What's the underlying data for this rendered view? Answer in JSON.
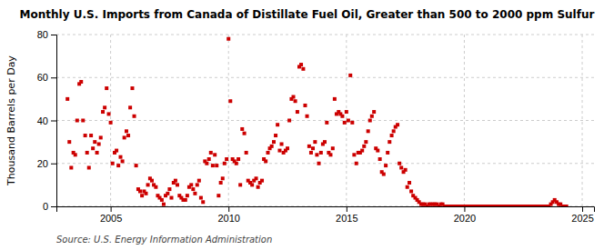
{
  "chart_data": {
    "type": "scatter",
    "title": "Monthly U.S. Imports from Canada of Distillate Fuel Oil, Greater than 500 to 2000 ppm Sulfur",
    "ylabel": "Thousand Barrels per Day",
    "source": "Source: U.S. Energy Information Administration",
    "color": "#cc0000",
    "marker": "square",
    "grid": true,
    "xlim": [
      2002.7,
      2025.5
    ],
    "ylim": [
      0,
      80
    ],
    "xticks": [
      2005,
      2010,
      2015,
      2020,
      2025
    ],
    "yticks": [
      0,
      20,
      40,
      60,
      80
    ],
    "x": [
      2003.17,
      2003.25,
      2003.33,
      2003.42,
      2003.5,
      2003.58,
      2003.67,
      2003.75,
      2003.83,
      2003.92,
      2004.0,
      2004.08,
      2004.17,
      2004.25,
      2004.33,
      2004.42,
      2004.5,
      2004.58,
      2004.67,
      2004.75,
      2004.83,
      2004.92,
      2005.0,
      2005.08,
      2005.17,
      2005.25,
      2005.33,
      2005.42,
      2005.5,
      2005.58,
      2005.67,
      2005.75,
      2005.83,
      2005.92,
      2006.0,
      2006.08,
      2006.17,
      2006.25,
      2006.33,
      2006.42,
      2006.5,
      2006.58,
      2006.67,
      2006.75,
      2006.83,
      2006.92,
      2007.0,
      2007.08,
      2007.17,
      2007.25,
      2007.33,
      2007.42,
      2007.5,
      2007.58,
      2007.67,
      2007.75,
      2007.83,
      2007.92,
      2008.0,
      2008.08,
      2008.17,
      2008.25,
      2008.33,
      2008.42,
      2008.5,
      2008.58,
      2008.67,
      2008.75,
      2008.83,
      2008.92,
      2009.0,
      2009.08,
      2009.17,
      2009.25,
      2009.33,
      2009.42,
      2009.5,
      2009.58,
      2009.67,
      2009.75,
      2009.83,
      2009.92,
      2010.0,
      2010.08,
      2010.17,
      2010.25,
      2010.33,
      2010.42,
      2010.5,
      2010.58,
      2010.67,
      2010.75,
      2010.83,
      2010.92,
      2011.0,
      2011.08,
      2011.17,
      2011.25,
      2011.33,
      2011.42,
      2011.5,
      2011.58,
      2011.67,
      2011.75,
      2011.83,
      2011.92,
      2012.0,
      2012.08,
      2012.17,
      2012.25,
      2012.33,
      2012.42,
      2012.5,
      2012.58,
      2012.67,
      2012.75,
      2012.83,
      2012.92,
      2013.0,
      2013.08,
      2013.17,
      2013.25,
      2013.33,
      2013.42,
      2013.5,
      2013.58,
      2013.67,
      2013.75,
      2013.83,
      2013.92,
      2014.0,
      2014.08,
      2014.17,
      2014.25,
      2014.33,
      2014.42,
      2014.5,
      2014.58,
      2014.67,
      2014.75,
      2014.83,
      2014.92,
      2015.0,
      2015.08,
      2015.17,
      2015.25,
      2015.33,
      2015.42,
      2015.5,
      2015.58,
      2015.67,
      2015.75,
      2015.83,
      2015.92,
      2016.0,
      2016.08,
      2016.17,
      2016.25,
      2016.33,
      2016.42,
      2016.5,
      2016.58,
      2016.67,
      2016.75,
      2016.83,
      2016.92,
      2017.0,
      2017.08,
      2017.17,
      2017.25,
      2017.33,
      2017.42,
      2017.5,
      2017.58,
      2017.67,
      2017.75,
      2017.83,
      2017.92,
      2018.0,
      2018.08,
      2018.17,
      2018.25,
      2018.33,
      2018.42,
      2018.5,
      2018.58,
      2018.67,
      2018.75,
      2018.83,
      2018.92,
      2019.0,
      2019.08,
      2019.17,
      2019.25,
      2019.33,
      2019.42,
      2019.5,
      2019.58,
      2019.67,
      2019.75,
      2019.83,
      2019.92,
      2020.0,
      2020.08,
      2020.17,
      2020.25,
      2020.33,
      2020.42,
      2020.5,
      2020.58,
      2020.67,
      2020.75,
      2020.83,
      2020.92,
      2021.0,
      2021.08,
      2021.17,
      2021.25,
      2021.33,
      2021.42,
      2021.5,
      2021.58,
      2021.67,
      2021.75,
      2021.83,
      2021.92,
      2022.0,
      2022.08,
      2022.17,
      2022.25,
      2022.33,
      2022.42,
      2022.5,
      2022.58,
      2022.67,
      2022.75,
      2022.83,
      2022.92,
      2023.0,
      2023.08,
      2023.17,
      2023.25,
      2023.33,
      2023.42,
      2023.5,
      2023.58,
      2023.67,
      2023.75,
      2023.83,
      2023.92,
      2024.0,
      2024.08,
      2024.17,
      2024.25,
      2024.33
    ],
    "values": [
      50,
      30,
      18,
      25,
      24,
      40,
      57,
      58,
      40,
      33,
      25,
      18,
      33,
      27,
      30,
      25,
      29,
      32,
      44,
      46,
      55,
      43,
      39,
      20,
      25,
      26,
      19,
      23,
      21,
      32,
      35,
      33,
      46,
      55,
      42,
      19,
      8,
      7,
      5,
      7,
      6,
      10,
      13,
      12,
      10,
      9,
      5,
      4,
      3,
      1,
      5,
      6,
      8,
      4,
      11,
      12,
      10,
      5,
      4,
      3,
      3,
      5,
      9,
      10,
      8,
      6,
      10,
      12,
      4,
      2,
      21,
      20,
      22,
      25,
      19,
      24,
      19,
      5,
      11,
      13,
      20,
      22,
      78,
      49,
      22,
      21,
      20,
      22,
      10,
      36,
      34,
      25,
      12,
      11,
      10,
      12,
      13,
      9,
      11,
      12,
      22,
      21,
      25,
      27,
      28,
      30,
      33,
      38,
      26,
      29,
      25,
      26,
      27,
      40,
      50,
      51,
      49,
      44,
      65,
      66,
      64,
      47,
      42,
      28,
      25,
      27,
      30,
      24,
      20,
      25,
      29,
      30,
      39,
      25,
      24,
      27,
      50,
      43,
      44,
      43,
      42,
      39,
      44,
      40,
      61,
      39,
      24,
      20,
      25,
      25,
      26,
      28,
      30,
      35,
      40,
      42,
      44,
      27,
      26,
      22,
      16,
      15,
      19,
      25,
      30,
      33,
      35,
      37,
      38,
      20,
      18,
      16,
      17,
      9,
      11,
      7,
      5,
      4,
      3,
      2,
      1,
      1,
      1,
      0,
      1,
      1,
      1,
      1,
      1,
      0,
      1,
      1,
      0,
      0,
      0,
      0,
      0,
      0,
      0,
      0,
      0,
      0,
      0,
      0,
      0,
      0,
      0,
      0,
      0,
      0,
      0,
      0,
      0,
      0,
      0,
      0,
      0,
      0,
      0,
      0,
      0,
      0,
      0,
      0,
      0,
      0,
      0,
      0,
      0,
      0,
      0,
      0,
      0,
      0,
      0,
      0,
      0,
      0,
      0,
      0,
      0,
      0,
      0,
      0,
      0,
      0,
      1,
      2,
      3,
      2,
      1,
      1,
      0,
      0,
      0
    ]
  }
}
